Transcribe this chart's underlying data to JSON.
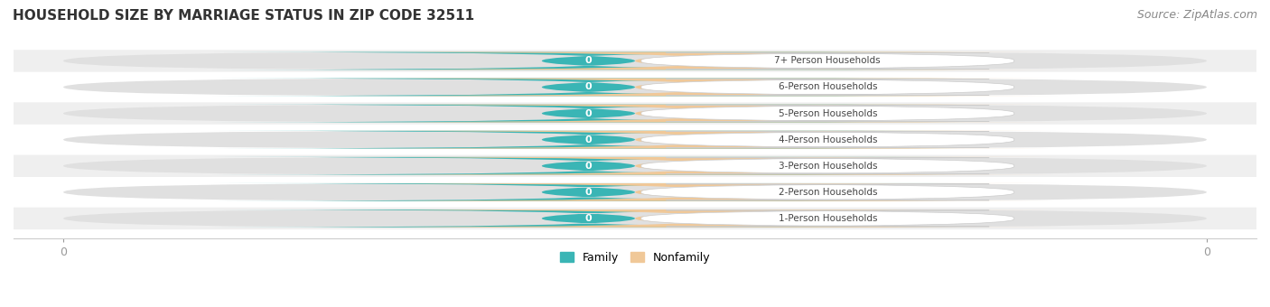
{
  "title": "HOUSEHOLD SIZE BY MARRIAGE STATUS IN ZIP CODE 32511",
  "source": "Source: ZipAtlas.com",
  "categories": [
    "7+ Person Households",
    "6-Person Households",
    "5-Person Households",
    "4-Person Households",
    "3-Person Households",
    "2-Person Households",
    "1-Person Households"
  ],
  "family_values": [
    0,
    0,
    0,
    0,
    0,
    0,
    0
  ],
  "nonfamily_values": [
    0,
    0,
    0,
    0,
    0,
    0,
    0
  ],
  "family_color": "#3ab5b5",
  "nonfamily_color": "#f0c898",
  "bar_bg_color": "#e0e0e0",
  "row_bg_colors": [
    "#efefef",
    "#ffffff"
  ],
  "title_fontsize": 11,
  "source_fontsize": 9,
  "tick_fontsize": 9,
  "legend_fontsize": 9,
  "background_color": "#ffffff"
}
